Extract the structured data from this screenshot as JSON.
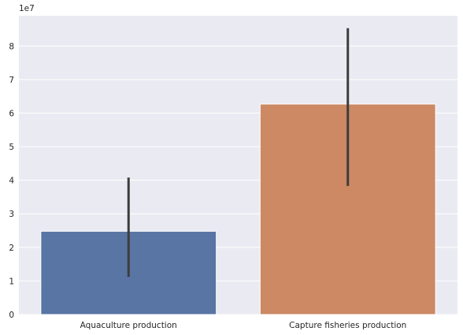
{
  "chart_data": {
    "type": "bar",
    "title": "",
    "xlabel": "",
    "ylabel": "",
    "categories": [
      "Aquaculture production",
      "Capture fisheries production"
    ],
    "values": [
      24800000,
      62700000
    ],
    "error_bars": [
      {
        "low": 11200000,
        "high": 40800000
      },
      {
        "low": 38300000,
        "high": 85300000
      }
    ],
    "ylim": [
      0,
      89000000
    ],
    "yticks": [
      0,
      10000000,
      20000000,
      30000000,
      40000000,
      50000000,
      60000000,
      70000000,
      80000000
    ],
    "ytick_labels": [
      "0",
      "1",
      "2",
      "3",
      "4",
      "5",
      "6",
      "7",
      "8"
    ],
    "y_offset_label": "1e7",
    "colors": [
      "#5975a4",
      "#cc8963"
    ],
    "error_color": "#3d3d3d",
    "background": "#eaeaf2",
    "grid": true,
    "grid_color": "#ffffff"
  }
}
